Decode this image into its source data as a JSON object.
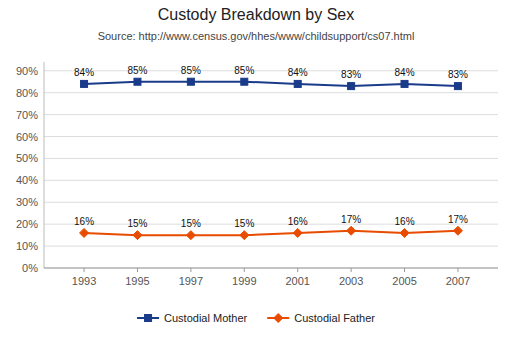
{
  "chart_data": {
    "type": "line",
    "title": "Custody Breakdown by Sex",
    "subtitle": "Source:  http://www.census.gov/hhes/www/childsupport/cs07.html",
    "x": [
      1993,
      1995,
      1997,
      1999,
      2001,
      2003,
      2005,
      2007
    ],
    "xlim": [
      1991.5,
      2008.5
    ],
    "xticks": [
      1993,
      1995,
      1997,
      1999,
      2001,
      2003,
      2005,
      2007
    ],
    "ylim": [
      0,
      94
    ],
    "yticks": [
      {
        "value": 0,
        "label": "0%"
      },
      {
        "value": 10,
        "label": "10%"
      },
      {
        "value": 20,
        "label": "20%"
      },
      {
        "value": 30,
        "label": "30%"
      },
      {
        "value": 40,
        "label": "40%"
      },
      {
        "value": 50,
        "label": "50%"
      },
      {
        "value": 60,
        "label": "60%"
      },
      {
        "value": 70,
        "label": "70%"
      },
      {
        "value": 80,
        "label": "80%"
      },
      {
        "value": 90,
        "label": "90%"
      }
    ],
    "grid": true,
    "legend": "bottom",
    "data_labels": true,
    "series": [
      {
        "name": "Custodial Mother",
        "color": "#1a3a8a",
        "marker": "square",
        "values": [
          84,
          85,
          85,
          85,
          84,
          83,
          84,
          83
        ],
        "value_labels": [
          "84%",
          "85%",
          "85%",
          "85%",
          "84%",
          "83%",
          "84%",
          "83%"
        ]
      },
      {
        "name": "Custodial Father",
        "color": "#e84c00",
        "marker": "diamond",
        "values": [
          16,
          15,
          15,
          15,
          16,
          17,
          16,
          17
        ],
        "value_labels": [
          "16%",
          "15%",
          "15%",
          "15%",
          "16%",
          "17%",
          "16%",
          "17%"
        ]
      }
    ]
  }
}
